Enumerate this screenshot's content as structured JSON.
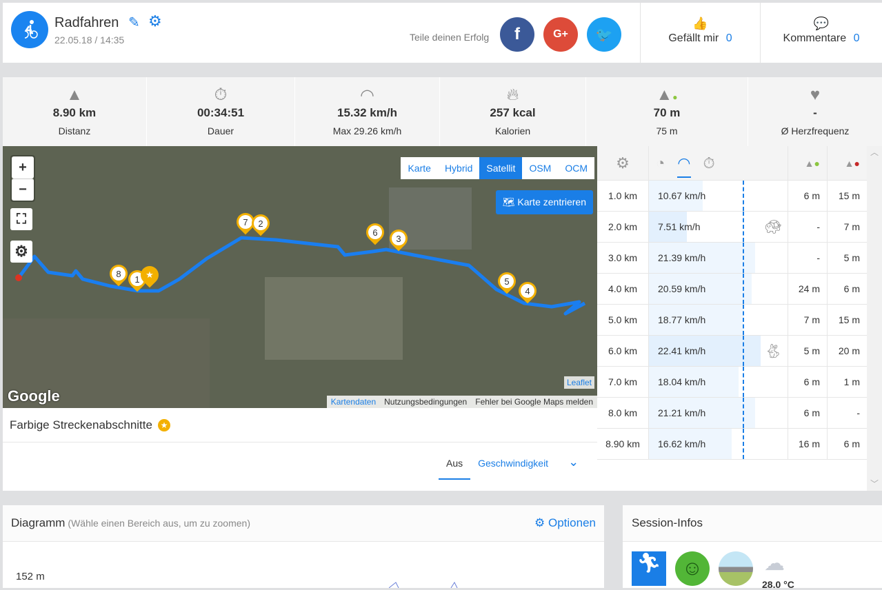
{
  "header": {
    "title": "Radfahren",
    "date": "22.05.18 / 14:35",
    "share_label": "Teile deinen Erfolg",
    "like_label": "Gefällt mir",
    "like_count": "0",
    "comment_label": "Kommentare",
    "comment_count": "0"
  },
  "stats": [
    {
      "icon": "road-icon",
      "value": "8.90 km",
      "label": "Distanz"
    },
    {
      "icon": "stopwatch-icon",
      "value": "00:34:51",
      "label": "Dauer"
    },
    {
      "icon": "speedometer-icon",
      "value": "15.32 km/h",
      "label": "Max 29.26 km/h"
    },
    {
      "icon": "flame-icon",
      "value": "257 kcal",
      "label": "Kalorien"
    },
    {
      "icon": "elevation-up-icon",
      "value": "70 m",
      "label": "75 m"
    },
    {
      "icon": "heart-icon",
      "value": "-",
      "label": "Ø Herzfrequenz"
    }
  ],
  "map": {
    "types": [
      "Karte",
      "Hybrid",
      "Satellit",
      "OSM",
      "OCM"
    ],
    "active_type": "Satellit",
    "center_label": "Karte zentrieren",
    "zoom_in": "+",
    "zoom_out": "−",
    "attribution": [
      "Kartendaten",
      "Nutzungsbedingungen",
      "Fehler bei Google Maps melden"
    ],
    "leaflet": "Leaflet",
    "google": "Google",
    "markers": [
      "8",
      "1",
      "7",
      "2",
      "6",
      "3",
      "5",
      "4"
    ]
  },
  "segments": {
    "title": "Farbige Streckenabschnitte",
    "tabs": [
      "Aus",
      "Geschwindigkeit"
    ],
    "active_tab": "Aus"
  },
  "splits": {
    "rows": [
      {
        "km": "1.0 km",
        "speed": "10.67 km/h",
        "pct": 0.48,
        "up": "6 m",
        "down": "15 m",
        "badge": ""
      },
      {
        "km": "2.0 km",
        "speed": "7.51 km/h",
        "pct": 0.34,
        "up": "-",
        "down": "7 m",
        "badge": "turtle"
      },
      {
        "km": "3.0 km",
        "speed": "21.39 km/h",
        "pct": 0.95,
        "up": "-",
        "down": "5 m",
        "badge": ""
      },
      {
        "km": "4.0 km",
        "speed": "20.59 km/h",
        "pct": 0.92,
        "up": "24 m",
        "down": "6 m",
        "badge": ""
      },
      {
        "km": "5.0 km",
        "speed": "18.77 km/h",
        "pct": 0.84,
        "up": "7 m",
        "down": "15 m",
        "badge": ""
      },
      {
        "km": "6.0 km",
        "speed": "22.41 km/h",
        "pct": 1.0,
        "up": "5 m",
        "down": "20 m",
        "badge": "hare"
      },
      {
        "km": "7.0 km",
        "speed": "18.04 km/h",
        "pct": 0.8,
        "up": "6 m",
        "down": "1 m",
        "badge": ""
      },
      {
        "km": "8.0 km",
        "speed": "21.21 km/h",
        "pct": 0.95,
        "up": "6 m",
        "down": "-",
        "badge": ""
      },
      {
        "km": "8.90 km",
        "speed": "16.62 km/h",
        "pct": 0.74,
        "up": "16 m",
        "down": "6 m",
        "badge": ""
      }
    ]
  },
  "diagram": {
    "title": "Diagramm",
    "hint": "(Wähle einen Bereich aus, um zu zoomen)",
    "options": "Optionen",
    "y_top": "152 m"
  },
  "session": {
    "title": "Session-Infos",
    "temperature": "28.0 °C"
  },
  "colors": {
    "accent": "#1a7ee6",
    "route": "#1a7ef0",
    "marker": "#f3b000",
    "facebook": "#3b5998",
    "google": "#dd4b39",
    "twitter": "#1da1f2"
  }
}
